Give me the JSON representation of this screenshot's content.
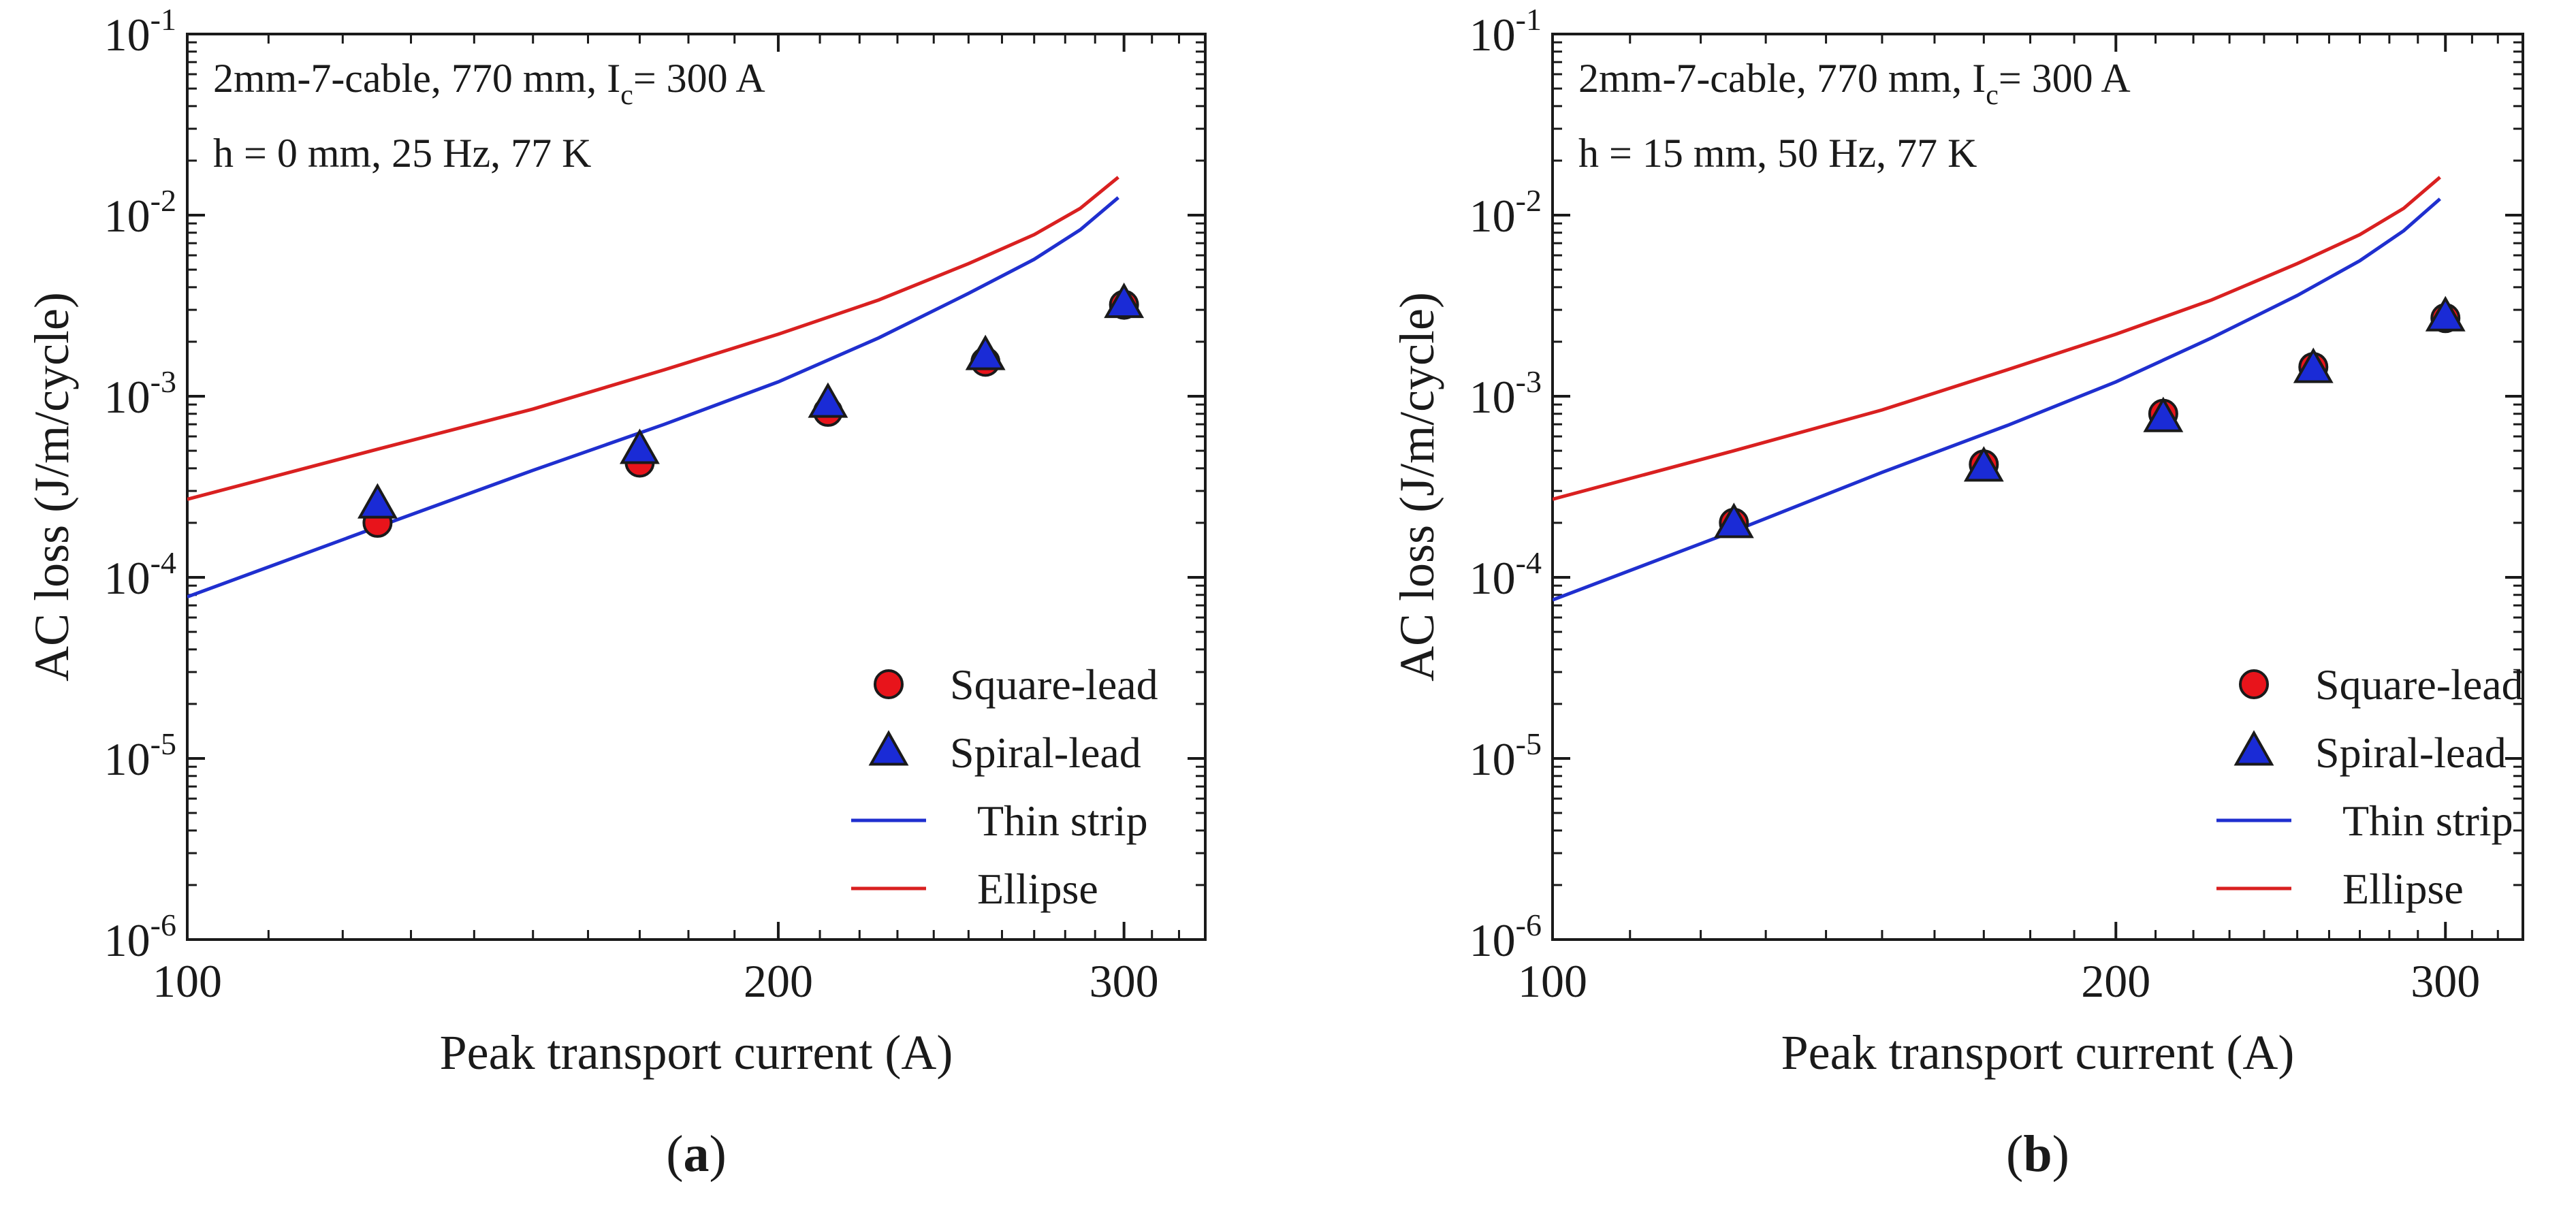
{
  "chart_data": [
    {
      "id": "a",
      "type": "scatter",
      "caption_open": "(",
      "caption_letter": "a",
      "caption_close": ")",
      "note_line1": "2mm-7-cable, 770 mm, I",
      "note_sub": "c",
      "note_line1_end": "= 300 A",
      "note_line2": "h = 0 mm, 25 Hz, 77 K",
      "xlabel": "Peak transport current (A)",
      "ylabel": "AC loss (J/m/cycle)",
      "xscale": "log",
      "yscale": "log",
      "xlim": [
        100,
        330
      ],
      "ylim": [
        1e-06,
        0.1
      ],
      "xticks": [
        100,
        200,
        300
      ],
      "xtick_labels": [
        "100",
        "200",
        "300"
      ],
      "yticks": [
        {
          "base": "10",
          "exp": "-6",
          "value": 1e-06
        },
        {
          "base": "10",
          "exp": "-5",
          "value": 1e-05
        },
        {
          "base": "10",
          "exp": "-4",
          "value": 0.0001
        },
        {
          "base": "10",
          "exp": "-3",
          "value": 0.001
        },
        {
          "base": "10",
          "exp": "-2",
          "value": 0.01
        },
        {
          "base": "10",
          "exp": "-1",
          "value": 0.1
        }
      ],
      "legend_position": "bottom-right",
      "series": [
        {
          "name": "Square-lead",
          "kind": "circle-marker",
          "color": "#e8141b",
          "x": [
            125,
            170,
            212,
            255,
            300
          ],
          "y": [
            0.0002,
            0.00043,
            0.00082,
            0.00155,
            0.0032
          ]
        },
        {
          "name": "Spiral-lead",
          "kind": "triangle-marker",
          "color": "#1a2bd6",
          "x": [
            125,
            170,
            212,
            255,
            300
          ],
          "y": [
            0.00025,
            0.0005,
            0.0009,
            0.00165,
            0.0032
          ]
        },
        {
          "name": "Thin strip",
          "kind": "line",
          "color": "#1f2fcf",
          "x": [
            100,
            125,
            150,
            175,
            200,
            225,
            250,
            270,
            285,
            298
          ],
          "y": [
            7.8e-05,
            0.00019,
            0.00039,
            0.0007,
            0.0012,
            0.0021,
            0.0037,
            0.0057,
            0.0083,
            0.0125
          ]
        },
        {
          "name": "Ellipse",
          "kind": "line",
          "color": "#d92020",
          "x": [
            100,
            125,
            150,
            175,
            200,
            225,
            250,
            270,
            285,
            298
          ],
          "y": [
            0.00027,
            0.00051,
            0.00085,
            0.0014,
            0.0022,
            0.0034,
            0.0054,
            0.0078,
            0.0109,
            0.0162
          ]
        }
      ]
    },
    {
      "id": "b",
      "type": "scatter",
      "caption_open": "(",
      "caption_letter": "b",
      "caption_close": ")",
      "note_line1": "2mm-7-cable, 770 mm, I",
      "note_sub": "c",
      "note_line1_end": "= 300 A",
      "note_line2": "h = 15 mm, 50 Hz, 77 K",
      "xlabel": "Peak transport current (A)",
      "ylabel": "AC loss (J/m/cycle)",
      "xscale": "log",
      "yscale": "log",
      "xlim": [
        100,
        330
      ],
      "ylim": [
        1e-06,
        0.1
      ],
      "xticks": [
        100,
        200,
        300
      ],
      "xtick_labels": [
        "100",
        "200",
        "300"
      ],
      "yticks": [
        {
          "base": "10",
          "exp": "-6",
          "value": 1e-06
        },
        {
          "base": "10",
          "exp": "-5",
          "value": 1e-05
        },
        {
          "base": "10",
          "exp": "-4",
          "value": 0.0001
        },
        {
          "base": "10",
          "exp": "-3",
          "value": 0.001
        },
        {
          "base": "10",
          "exp": "-2",
          "value": 0.01
        },
        {
          "base": "10",
          "exp": "-1",
          "value": 0.1
        }
      ],
      "legend_position": "bottom-right",
      "series": [
        {
          "name": "Square-lead",
          "kind": "circle-marker",
          "color": "#e8141b",
          "x": [
            125,
            170,
            212,
            255,
            300
          ],
          "y": [
            0.0002,
            0.00042,
            0.0008,
            0.00145,
            0.0027
          ]
        },
        {
          "name": "Spiral-lead",
          "kind": "triangle-marker",
          "color": "#1a2bd6",
          "x": [
            125,
            170,
            212,
            255,
            300
          ],
          "y": [
            0.000195,
            0.0004,
            0.00075,
            0.0014,
            0.0027
          ]
        },
        {
          "name": "Thin strip",
          "kind": "line",
          "color": "#1f2fcf",
          "x": [
            100,
            125,
            150,
            175,
            200,
            225,
            250,
            270,
            285,
            298
          ],
          "y": [
            7.5e-05,
            0.00018,
            0.00038,
            0.00069,
            0.0012,
            0.0021,
            0.0036,
            0.0056,
            0.0082,
            0.0123
          ]
        },
        {
          "name": "Ellipse",
          "kind": "line",
          "color": "#d92020",
          "x": [
            100,
            125,
            150,
            175,
            200,
            225,
            250,
            270,
            285,
            298
          ],
          "y": [
            0.00027,
            0.0005,
            0.00084,
            0.0014,
            0.0022,
            0.0034,
            0.0054,
            0.0078,
            0.0109,
            0.0162
          ]
        }
      ]
    }
  ]
}
